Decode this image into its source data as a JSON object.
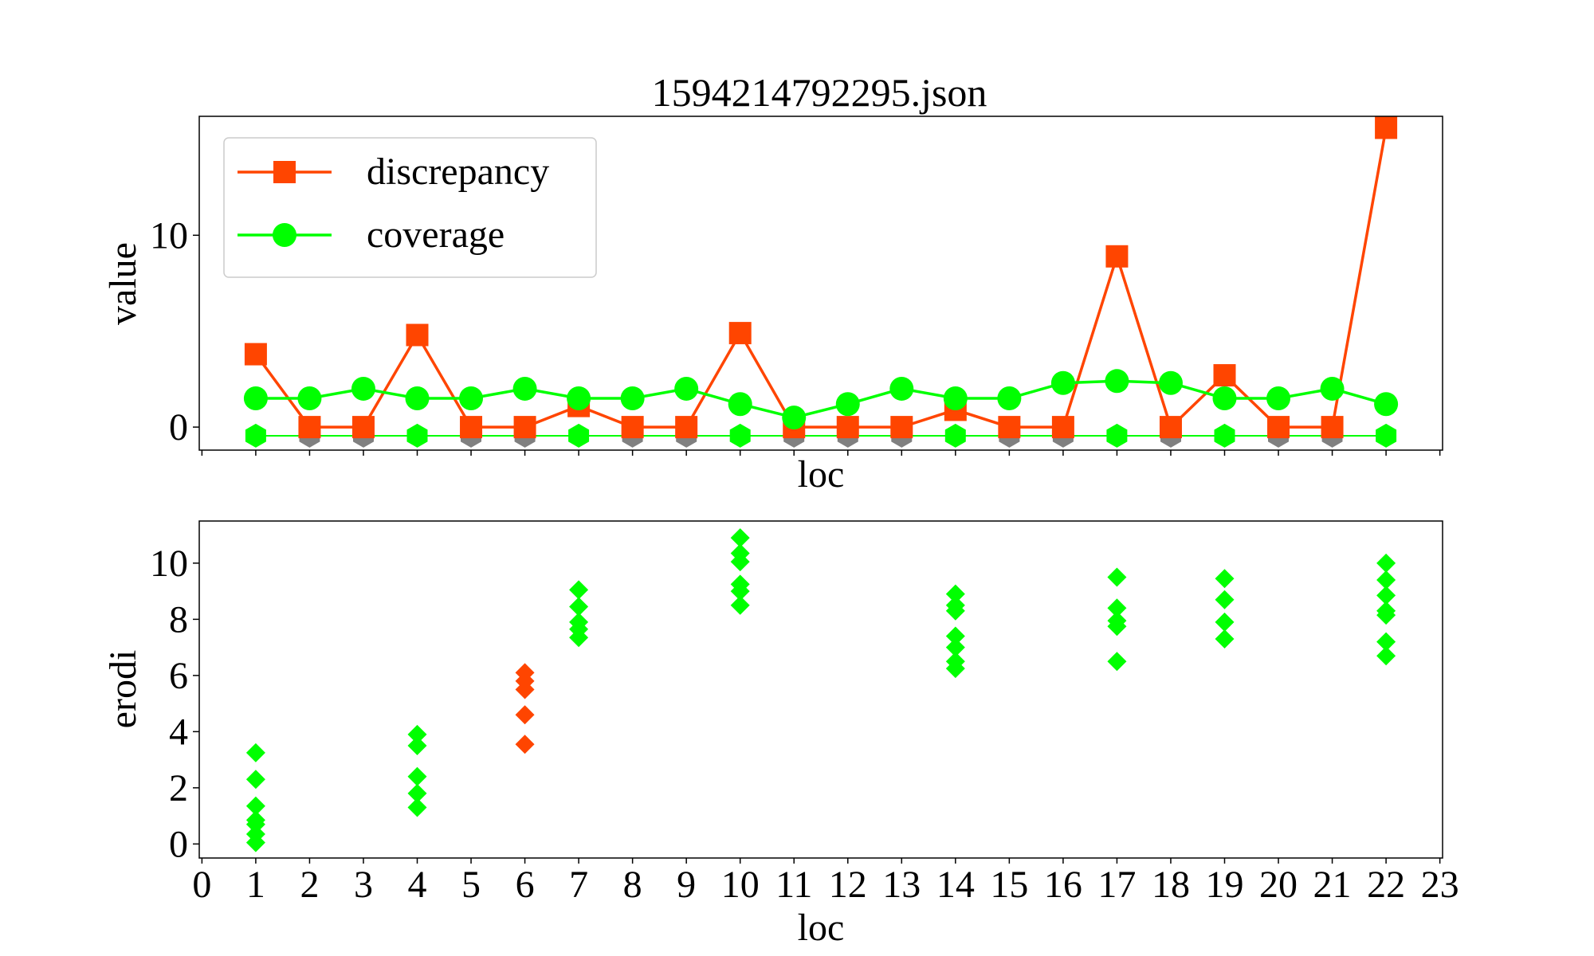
{
  "title": "1594214792295.json",
  "colors": {
    "discrepancy": "#ff4500",
    "coverage": "#00ff00",
    "marker_gray": "#808080",
    "axes": "#000000",
    "legend_border": "#cccccc"
  },
  "chart_data": [
    {
      "type": "line",
      "title": "1594214792295.json",
      "xlabel": "loc",
      "ylabel": "value",
      "xlim": [
        -0.05,
        23.05
      ],
      "ylim": [
        -1.2,
        16.2
      ],
      "yticks": [
        0,
        10
      ],
      "xticks": [
        0,
        1,
        2,
        3,
        4,
        5,
        6,
        7,
        8,
        9,
        10,
        11,
        12,
        13,
        14,
        15,
        16,
        17,
        18,
        19,
        20,
        21,
        22,
        23
      ],
      "x_tick_labels_visible": false,
      "grid": false,
      "legend": {
        "placement": "top-left",
        "entries": [
          "discrepancy",
          "coverage"
        ]
      },
      "x": [
        1,
        2,
        3,
        4,
        5,
        6,
        7,
        8,
        9,
        10,
        11,
        12,
        13,
        14,
        15,
        16,
        17,
        18,
        19,
        20,
        21,
        22
      ],
      "series": [
        {
          "name": "discrepancy",
          "marker": "square",
          "color": "#ff4500",
          "values": [
            3.8,
            0,
            0,
            4.8,
            0,
            0,
            1.1,
            0,
            0,
            4.9,
            0,
            0,
            0,
            0.9,
            0,
            0,
            8.9,
            0,
            2.7,
            0,
            0,
            15.6
          ]
        },
        {
          "name": "coverage",
          "marker": "circle",
          "color": "#00ff00",
          "values": [
            1.5,
            1.5,
            2.0,
            1.5,
            1.5,
            2.0,
            1.5,
            1.5,
            2.0,
            1.2,
            0.5,
            1.2,
            2.0,
            1.5,
            1.5,
            2.3,
            2.4,
            2.3,
            1.5,
            1.5,
            2.0,
            1.2
          ]
        }
      ],
      "baseline_markers": {
        "marker": "hexagon",
        "y": -0.45,
        "x": [
          1,
          2,
          3,
          4,
          5,
          6,
          7,
          8,
          9,
          10,
          11,
          12,
          13,
          14,
          15,
          16,
          17,
          18,
          19,
          20,
          21,
          22
        ],
        "colors": [
          "#00ff00",
          "#808080",
          "#808080",
          "#00ff00",
          "#808080",
          "#808080",
          "#00ff00",
          "#808080",
          "#808080",
          "#00ff00",
          "#808080",
          "#808080",
          "#808080",
          "#00ff00",
          "#808080",
          "#808080",
          "#00ff00",
          "#808080",
          "#00ff00",
          "#808080",
          "#808080",
          "#00ff00"
        ]
      }
    },
    {
      "type": "scatter",
      "xlabel": "loc",
      "ylabel": "erodi",
      "xlim": [
        -0.05,
        23.05
      ],
      "ylim": [
        -0.5,
        11.5
      ],
      "yticks": [
        0,
        2,
        4,
        6,
        8,
        10
      ],
      "xticks": [
        0,
        1,
        2,
        3,
        4,
        5,
        6,
        7,
        8,
        9,
        10,
        11,
        12,
        13,
        14,
        15,
        16,
        17,
        18,
        19,
        20,
        21,
        22,
        23
      ],
      "grid": false,
      "marker": "diamond",
      "points": [
        {
          "x": 1,
          "color": "#00ff00",
          "y": [
            3.25,
            2.3,
            1.35,
            0.85,
            0.7,
            0.35,
            0.05
          ]
        },
        {
          "x": 4,
          "color": "#00ff00",
          "y": [
            3.9,
            3.5,
            2.4,
            1.8,
            1.3
          ]
        },
        {
          "x": 6,
          "color": "#ff4500",
          "y": [
            6.1,
            5.8,
            5.5,
            4.6,
            3.55
          ]
        },
        {
          "x": 7,
          "color": "#00ff00",
          "y": [
            9.05,
            8.45,
            7.9,
            7.65,
            7.35
          ]
        },
        {
          "x": 10,
          "color": "#00ff00",
          "y": [
            10.9,
            10.35,
            10.05,
            9.25,
            9.0,
            8.5
          ]
        },
        {
          "x": 14,
          "color": "#00ff00",
          "y": [
            8.9,
            8.5,
            8.3,
            7.4,
            7.0,
            6.5,
            6.25
          ]
        },
        {
          "x": 17,
          "color": "#00ff00",
          "y": [
            9.5,
            8.4,
            7.95,
            7.75,
            6.5
          ]
        },
        {
          "x": 19,
          "color": "#00ff00",
          "y": [
            9.45,
            8.7,
            7.9,
            7.3
          ]
        },
        {
          "x": 22,
          "color": "#00ff00",
          "y": [
            10.0,
            9.4,
            8.85,
            8.3,
            8.15,
            7.2,
            6.7
          ]
        }
      ]
    }
  ]
}
